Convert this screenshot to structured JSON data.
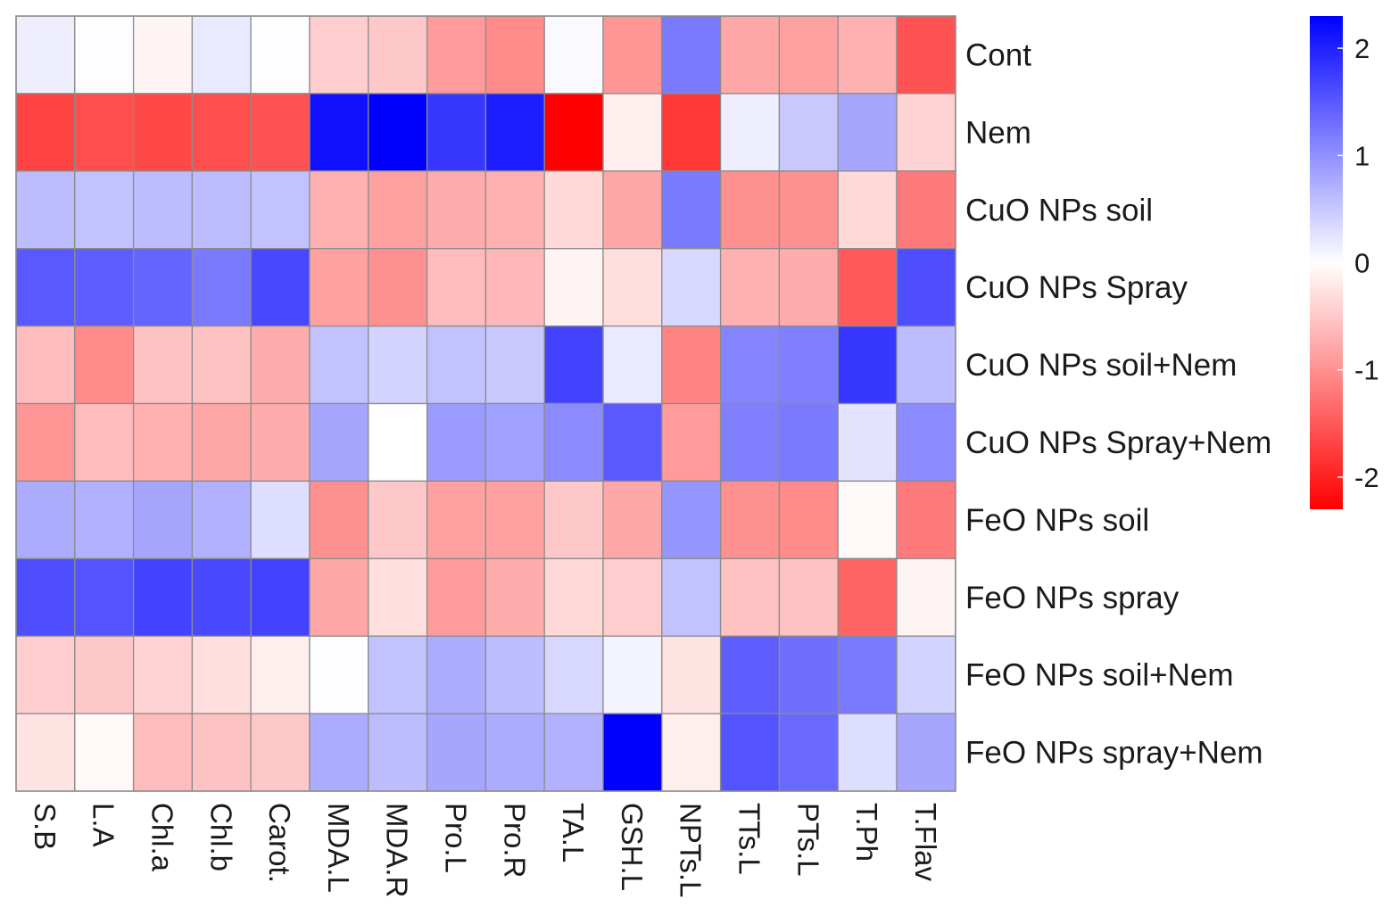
{
  "chart_data": {
    "type": "heatmap",
    "title": "",
    "rows": [
      "Cont",
      "Nem",
      "CuO NPs soil",
      "CuO NPs Spray",
      "CuO NPs soil+Nem",
      "CuO NPs Spray+Nem",
      "FeO NPs soil",
      "FeO NPs spray",
      "FeO NPs soil+Nem",
      "FeO NPs spray+Nem"
    ],
    "columns": [
      "S.B",
      "L.A",
      "Chl.a",
      "Chl.b",
      "Carot.",
      "MDA.L",
      "MDA.R",
      "Pro.L",
      "Pro.R",
      "TA.L",
      "GSH.L",
      "NPTs.L",
      "TTs.L",
      "PTs.L",
      "T.Ph",
      "T.Flav"
    ],
    "values": [
      [
        0.15,
        0.02,
        -0.1,
        0.2,
        0.02,
        -0.45,
        -0.5,
        -0.9,
        -1.05,
        0.05,
        -0.95,
        1.2,
        -0.8,
        -0.85,
        -0.7,
        -1.55
      ],
      [
        -1.7,
        -1.6,
        -1.65,
        -1.6,
        -1.55,
        2.15,
        2.3,
        1.8,
        2.05,
        -2.3,
        -0.15,
        -1.8,
        0.15,
        0.5,
        0.8,
        -0.4
      ],
      [
        0.6,
        0.55,
        0.6,
        0.6,
        0.55,
        -0.7,
        -0.85,
        -0.75,
        -0.7,
        -0.35,
        -0.8,
        1.2,
        -1.0,
        -1.0,
        -0.35,
        -1.2
      ],
      [
        1.5,
        1.45,
        1.4,
        1.2,
        1.65,
        -0.85,
        -1.0,
        -0.6,
        -0.65,
        -0.1,
        -0.3,
        0.35,
        -0.7,
        -0.75,
        -1.5,
        1.6
      ],
      [
        -0.6,
        -1.05,
        -0.55,
        -0.55,
        -0.75,
        0.55,
        0.4,
        0.55,
        0.5,
        1.7,
        0.2,
        -1.1,
        1.1,
        1.15,
        1.8,
        0.6
      ],
      [
        -0.95,
        -0.6,
        -0.7,
        -0.8,
        -0.75,
        0.8,
        0.0,
        0.9,
        0.85,
        1.05,
        1.5,
        -0.9,
        1.15,
        1.2,
        0.25,
        1.05
      ],
      [
        0.75,
        0.7,
        0.8,
        0.7,
        0.3,
        -1.0,
        -0.5,
        -0.85,
        -0.85,
        -0.5,
        -0.8,
        0.95,
        -1.0,
        -1.05,
        -0.05,
        -1.2
      ],
      [
        1.6,
        1.55,
        1.7,
        1.65,
        1.7,
        -0.8,
        -0.3,
        -0.9,
        -0.75,
        -0.35,
        -0.45,
        0.55,
        -0.55,
        -0.55,
        -1.4,
        -0.1
      ],
      [
        -0.45,
        -0.5,
        -0.4,
        -0.3,
        -0.15,
        0.02,
        0.55,
        0.75,
        0.6,
        0.35,
        0.1,
        -0.25,
        1.45,
        1.3,
        1.2,
        0.4
      ],
      [
        -0.25,
        -0.05,
        -0.6,
        -0.55,
        -0.5,
        0.75,
        0.6,
        0.8,
        0.75,
        0.7,
        2.3,
        -0.15,
        1.55,
        1.35,
        0.3,
        0.8
      ]
    ],
    "colorbar": {
      "min": -2.3,
      "max": 2.3,
      "ticks": [
        2,
        1,
        0,
        -1,
        -2
      ],
      "colors": {
        "low": "#ff0000",
        "mid": "#ffffff",
        "high": "#0000ff"
      }
    },
    "grid_color": "#8c8c8c"
  }
}
